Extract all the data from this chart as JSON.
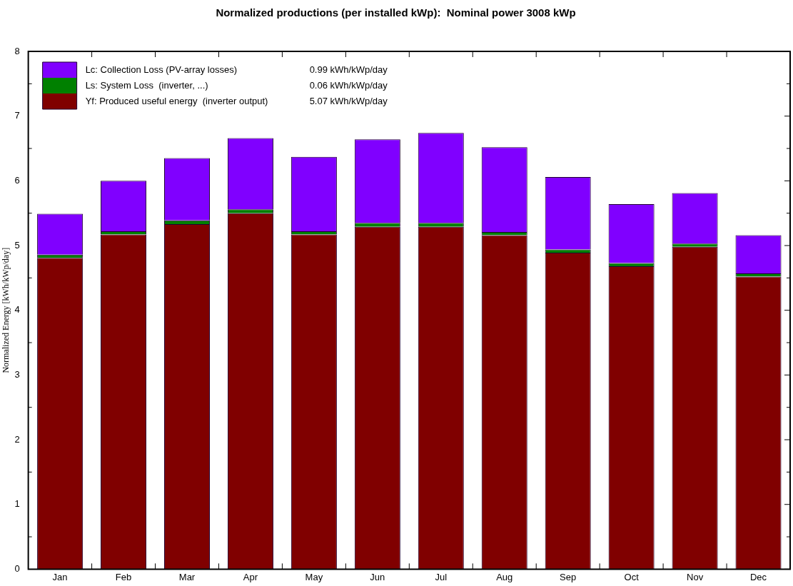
{
  "chart_data": {
    "type": "bar",
    "title": "Normalized productions (per installed kWp):  Nominal power 3008 kWp",
    "ylabel": "Normalized Energy [kWh/kWp/day]",
    "categories": [
      "Jan",
      "Feb",
      "Mar",
      "Apr",
      "May",
      "Jun",
      "Jul",
      "Aug",
      "Sep",
      "Oct",
      "Nov",
      "Dec"
    ],
    "stacked": true,
    "series": [
      {
        "name": "Yf: Produced useful energy  (inverter output)",
        "color": "#800000",
        "values": [
          4.81,
          5.17,
          5.33,
          5.5,
          5.17,
          5.29,
          5.29,
          5.16,
          4.89,
          4.68,
          4.98,
          4.52
        ]
      },
      {
        "name": "Ls: System Loss  (inverter, ...)",
        "color": "#008000",
        "values": [
          0.05,
          0.05,
          0.06,
          0.06,
          0.05,
          0.06,
          0.06,
          0.05,
          0.05,
          0.05,
          0.05,
          0.05
        ]
      },
      {
        "name": "Lc: Collection Loss (PV-array losses)",
        "color": "#8000ff",
        "values": [
          0.63,
          0.78,
          0.96,
          1.1,
          1.15,
          1.29,
          1.39,
          1.31,
          1.12,
          0.91,
          0.78,
          0.59
        ]
      }
    ],
    "annotations": [
      "5.07 kWh/kWp/day",
      "0.06 kWh/kWp/day",
      "0.99 kWh/kWp/day"
    ],
    "ylim": [
      0,
      8
    ],
    "yticks": [
      0,
      1,
      2,
      3,
      4,
      5,
      6,
      7,
      8
    ],
    "grid": false,
    "legend": "top left"
  }
}
